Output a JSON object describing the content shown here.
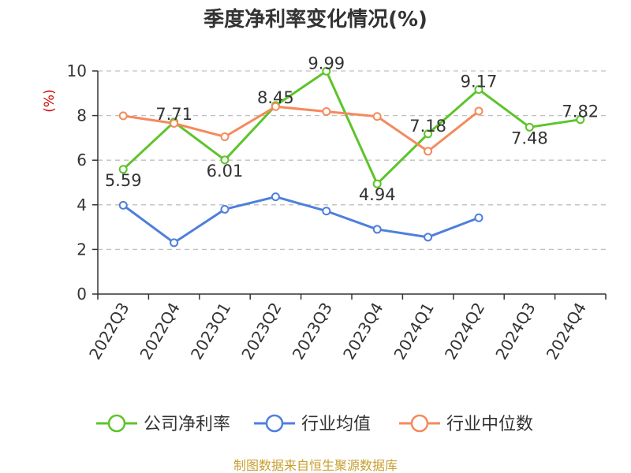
{
  "chart_data": {
    "type": "line",
    "title": "季度净利率变化情况(%)",
    "ylabel": "(%)",
    "xlabel": "",
    "categories": [
      "2022Q3",
      "2022Q4",
      "2023Q1",
      "2023Q2",
      "2023Q3",
      "2023Q4",
      "2024Q1",
      "2024Q2",
      "2024Q3",
      "2024Q4"
    ],
    "ylim": [
      0,
      10
    ],
    "yticks": [
      0,
      2,
      4,
      6,
      8,
      10
    ],
    "grid": true,
    "legend_position": "bottom",
    "series": [
      {
        "name": "公司净利率",
        "color": "#5dc42a",
        "values": [
          5.59,
          7.71,
          6.01,
          8.45,
          9.99,
          4.94,
          7.18,
          9.17,
          7.48,
          7.82
        ],
        "labels": [
          "5.59",
          "7.71",
          "6.01",
          "8.45",
          "9.99",
          "4.94",
          "7.18",
          "9.17",
          "7.48",
          "7.82"
        ]
      },
      {
        "name": "行业均值",
        "color": "#4e7fdc",
        "values": [
          3.98,
          2.3,
          3.8,
          4.36,
          3.72,
          2.9,
          2.55,
          3.42,
          null,
          null
        ]
      },
      {
        "name": "行业中位数",
        "color": "#f48a5c",
        "values": [
          7.99,
          7.65,
          7.05,
          8.4,
          8.18,
          7.96,
          6.4,
          8.2,
          null,
          null
        ]
      }
    ]
  },
  "source_text": "制图数据来自恒生聚源数据库",
  "colors": {
    "axis": "#333333",
    "grid": "#c0c0c0",
    "ylabel": "#cc0000",
    "source": "#c8a032"
  }
}
